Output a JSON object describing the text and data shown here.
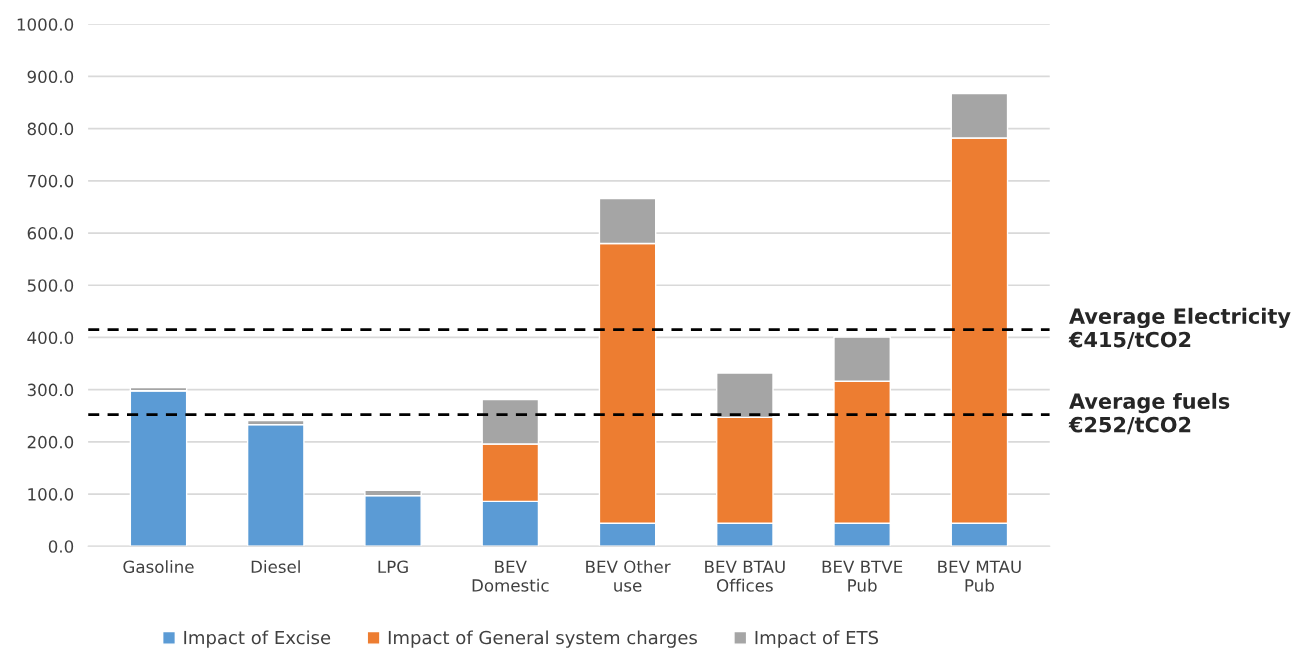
{
  "chart_data": {
    "type": "bar",
    "stacked": true,
    "categories": [
      "Gasoline",
      "Diesel",
      "LPG",
      "BEV\nDomestic",
      "BEV Other\nuse",
      "BEV BTAU\nOffices",
      "BEV BTVE\nPub",
      "BEV MTAU\nPub"
    ],
    "series": [
      {
        "name": "Impact of Excise",
        "color": "#5b9bd5",
        "values": [
          298,
          233,
          97,
          86,
          44,
          44,
          44,
          44
        ]
      },
      {
        "name": "Impact of General system charges",
        "color": "#ed7d31",
        "values": [
          0,
          0,
          0,
          110,
          536,
          203,
          272,
          738
        ]
      },
      {
        "name": "Impact of ETS",
        "color": "#a5a5a5",
        "values": [
          6,
          8,
          10,
          85,
          86,
          85,
          85,
          85
        ]
      }
    ],
    "ylim": [
      0,
      1000
    ],
    "yticks": [
      {
        "value": 0,
        "label": "0.0"
      },
      {
        "value": 100,
        "label": "100.0"
      },
      {
        "value": 200,
        "label": "200.0"
      },
      {
        "value": 300,
        "label": "300.0"
      },
      {
        "value": 400,
        "label": "400.0"
      },
      {
        "value": 500,
        "label": "500.0"
      },
      {
        "value": 600,
        "label": "600.0"
      },
      {
        "value": 700,
        "label": "700.0"
      },
      {
        "value": 800,
        "label": "800.0"
      },
      {
        "value": 900,
        "label": "900.0"
      },
      {
        "value": 1000,
        "label": "1000.0"
      }
    ],
    "ref_lines": [
      {
        "axis": "y",
        "value": 415,
        "label": "Average Electricity\n€415/tCO2",
        "color": "#000000",
        "line_style": "dashed"
      },
      {
        "axis": "y",
        "value": 252,
        "label": "Average fuels\n€252/tCO2",
        "color": "#000000",
        "line_style": "dashed"
      }
    ],
    "grid": "y",
    "legend": "bottom"
  }
}
